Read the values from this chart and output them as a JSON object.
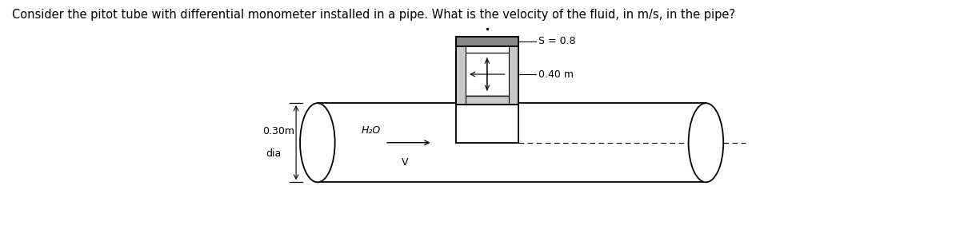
{
  "title": "Consider the pitot tube with differential monometer installed in a pipe. What is the velocity of the fluid, in m/s, in the pipe?",
  "title_fontsize": 10.5,
  "fig_width": 12.0,
  "fig_height": 3.07,
  "bg_color": "#ffffff",
  "text_color": "#000000",
  "label_S": "S = 0.8",
  "label_040": "0.40 m",
  "label_030": "0.30m",
  "label_dia": "dia",
  "label_H2O": "H₂O",
  "label_V": "V",
  "pipe_lw": 1.3,
  "man_lw": 1.3
}
